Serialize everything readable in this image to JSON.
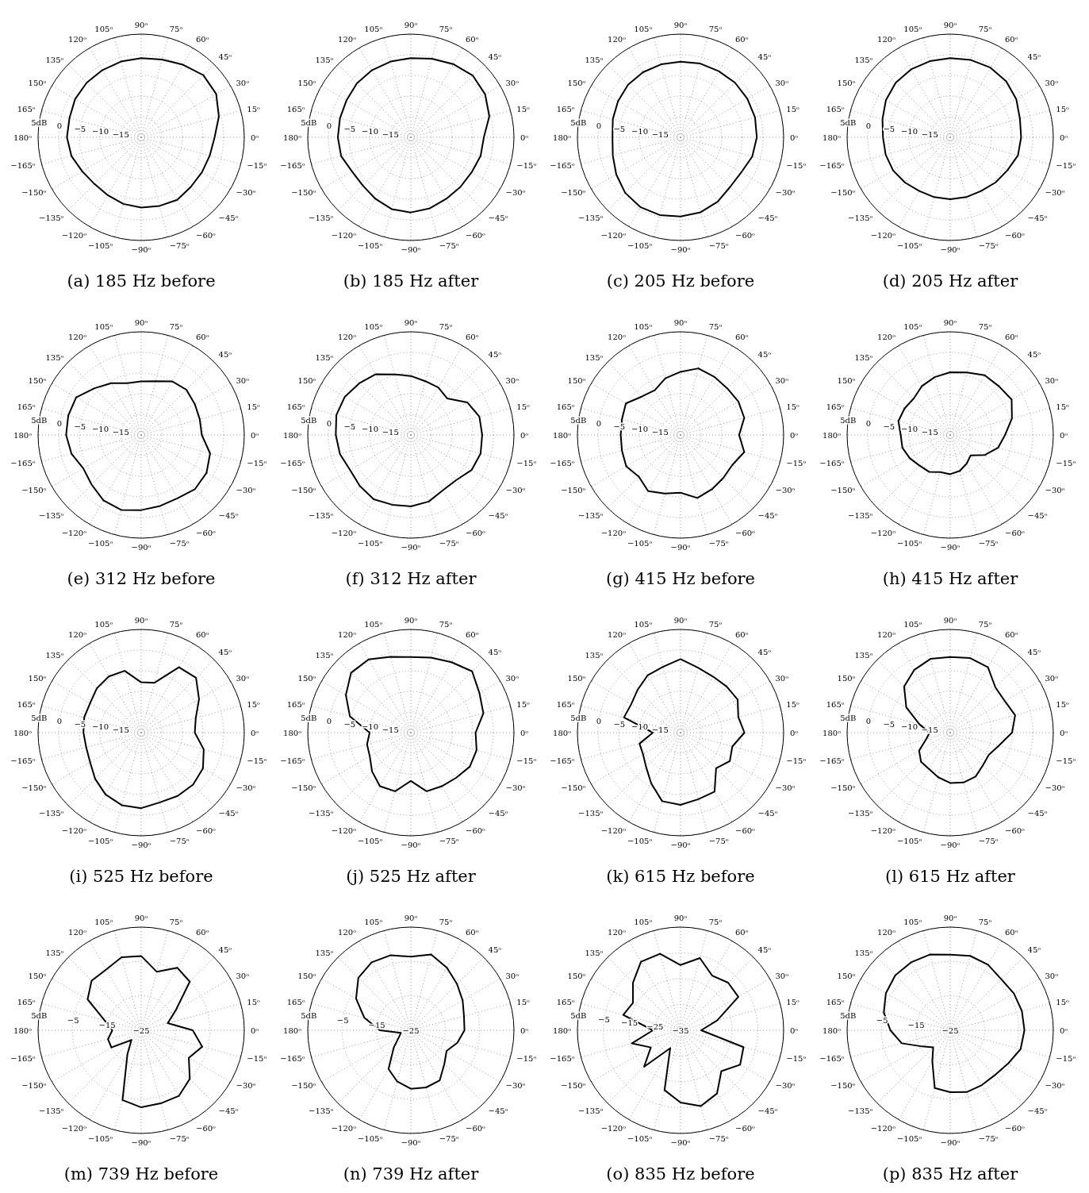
{
  "chart_data": [
    {
      "type": "radar",
      "title": "(a) 185 Hz before",
      "categories": [
        "90ᵒ",
        "75ᵒ",
        "60ᵒ",
        "45ᵒ",
        "30ᵒ",
        "15ᵒ",
        "0ᵒ",
        "−15ᵒ",
        "−30ᵒ",
        "−45ᵒ",
        "−60ᵒ",
        "−75ᵒ",
        "−90ᵒ",
        "−105ᵒ",
        "−120ᵒ",
        "−135ᵒ",
        "−150ᵒ",
        "−165ᵒ",
        "180ᵒ",
        "165ᵒ",
        "150ᵒ",
        "135ᵒ",
        "120ᵒ",
        "105ᵒ"
      ],
      "ylim": [
        -20,
        5
      ],
      "yticks": [
        {
          "value": -15,
          "label": "−15"
        },
        {
          "value": -10,
          "label": "−10"
        },
        {
          "value": -5,
          "label": "−5"
        },
        {
          "value": 0,
          "label": "0"
        },
        {
          "value": 5,
          "label": "5dB"
        }
      ],
      "grid": true,
      "series": [
        {
          "color": "#000000",
          "values": [
            -0.8,
            -0.5,
            0.3,
            1.3,
            1.0,
            -0.5,
            -2.2,
            -2.8,
            -3,
            -3,
            -2.5,
            -2.8,
            -3,
            -3.3,
            -3.8,
            -4,
            -3.5,
            -2.5,
            -2,
            -2,
            -1.5,
            -1.3,
            -1.2,
            -1
          ]
        }
      ]
    },
    {
      "type": "radar",
      "title": "(b) 185 Hz after",
      "categories": [
        "90ᵒ",
        "75ᵒ",
        "60ᵒ",
        "45ᵒ",
        "30ᵒ",
        "15ᵒ",
        "0ᵒ",
        "−15ᵒ",
        "−30ᵒ",
        "−45ᵒ",
        "−60ᵒ",
        "−75ᵒ",
        "−90ᵒ",
        "−105ᵒ",
        "−120ᵒ",
        "−135ᵒ",
        "−150ᵒ",
        "−165ᵒ",
        "180ᵒ",
        "165ᵒ",
        "150ᵒ",
        "135ᵒ",
        "120ᵒ",
        "105ᵒ"
      ],
      "ylim": [
        -20,
        5
      ],
      "yticks": [
        {
          "value": -15,
          "label": "−15"
        },
        {
          "value": -10,
          "label": "−10"
        },
        {
          "value": -5,
          "label": "−5"
        },
        {
          "value": 0,
          "label": "0"
        },
        {
          "value": 5,
          "label": "5dB"
        }
      ],
      "grid": true,
      "series": [
        {
          "color": "#000000",
          "values": [
            -0.8,
            -0.3,
            0.5,
            1.2,
            0.8,
            -0.3,
            -2.3,
            -2.5,
            -3,
            -3,
            -2.8,
            -2.2,
            -1.8,
            -2,
            -2.8,
            -3.5,
            -3.5,
            -2.5,
            -2.3,
            -2.2,
            -2,
            -1.5,
            -1.2,
            -1
          ]
        }
      ]
    },
    {
      "type": "radar",
      "title": "(c) 205 Hz before",
      "categories": [
        "90ᵒ",
        "75ᵒ",
        "60ᵒ",
        "45ᵒ",
        "30ᵒ",
        "15ᵒ",
        "0ᵒ",
        "−15ᵒ",
        "−30ᵒ",
        "−45ᵒ",
        "−60ᵒ",
        "−75ᵒ",
        "−90ᵒ",
        "−105ᵒ",
        "−120ᵒ",
        "−135ᵒ",
        "−150ᵒ",
        "−165ᵒ",
        "180ᵒ",
        "165ᵒ",
        "150ᵒ",
        "135ᵒ",
        "120ᵒ",
        "105ᵒ"
      ],
      "ylim": [
        -20,
        5
      ],
      "yticks": [
        {
          "value": -15,
          "label": "−15"
        },
        {
          "value": -10,
          "label": "−10"
        },
        {
          "value": -5,
          "label": "−5"
        },
        {
          "value": 0,
          "label": "0"
        },
        {
          "value": 5,
          "label": "5dB"
        }
      ],
      "grid": true,
      "series": [
        {
          "color": "#000000",
          "values": [
            -1.7,
            -1.5,
            -1.5,
            -1.3,
            -1.3,
            -1.3,
            -1.5,
            -2,
            -3,
            -3,
            -2,
            -1.2,
            -0.8,
            -0.5,
            -0.5,
            -1,
            -2,
            -3,
            -3.5,
            -3,
            -2.5,
            -2,
            -1.8,
            -1.7
          ]
        }
      ]
    },
    {
      "type": "radar",
      "title": "(d) 205 Hz after",
      "categories": [
        "90ᵒ",
        "75ᵒ",
        "60ᵒ",
        "45ᵒ",
        "30ᵒ",
        "15ᵒ",
        "0ᵒ",
        "−15ᵒ",
        "−30ᵒ",
        "−45ᵒ",
        "−60ᵒ",
        "−75ᵒ",
        "−90ᵒ",
        "−105ᵒ",
        "−120ᵒ",
        "−135ᵒ",
        "−150ᵒ",
        "−165ᵒ",
        "180ᵒ",
        "165ᵒ",
        "150ᵒ",
        "135ᵒ",
        "120ᵒ",
        "105ᵒ"
      ],
      "ylim": [
        -20,
        5
      ],
      "yticks": [
        {
          "value": -15,
          "label": "−15"
        },
        {
          "value": -10,
          "label": "−10"
        },
        {
          "value": -5,
          "label": "−5"
        },
        {
          "value": 0,
          "label": "0"
        },
        {
          "value": 5,
          "label": "5dB"
        }
      ],
      "grid": true,
      "series": [
        {
          "color": "#000000",
          "values": [
            -0.8,
            -0.6,
            -0.5,
            -0.8,
            -1.5,
            -2.5,
            -2.8,
            -3,
            -4,
            -4.5,
            -5,
            -5,
            -5,
            -5,
            -5,
            -4.5,
            -4,
            -3.8,
            -3.7,
            -3,
            -2,
            -1.3,
            -1,
            -0.9
          ]
        }
      ]
    },
    {
      "type": "radar",
      "title": "(e) 312 Hz before",
      "categories": [
        "90ᵒ",
        "75ᵒ",
        "60ᵒ",
        "45ᵒ",
        "30ᵒ",
        "15ᵒ",
        "0ᵒ",
        "−15ᵒ",
        "−30ᵒ",
        "−45ᵒ",
        "−60ᵒ",
        "−75ᵒ",
        "−90ᵒ",
        "−105ᵒ",
        "−120ᵒ",
        "−135ᵒ",
        "−150ᵒ",
        "−165ᵒ",
        "180ᵒ",
        "165ᵒ",
        "150ᵒ",
        "135ᵒ",
        "120ᵒ",
        "105ᵒ"
      ],
      "ylim": [
        -20,
        5
      ],
      "yticks": [
        {
          "value": -15,
          "label": "−15"
        },
        {
          "value": -10,
          "label": "−10"
        },
        {
          "value": -5,
          "label": "−5"
        },
        {
          "value": 0,
          "label": "0"
        },
        {
          "value": 5,
          "label": "5dB"
        }
      ],
      "grid": true,
      "series": [
        {
          "color": "#000000",
          "values": [
            -7,
            -6.5,
            -5,
            -4.5,
            -5,
            -5.3,
            -5.3,
            -2.7,
            -1.7,
            -1.5,
            -2.3,
            -2.2,
            -1.8,
            -1.2,
            -1.7,
            -3,
            -3.8,
            -2.5,
            -1.8,
            -1.7,
            -1.8,
            -4,
            -5.5,
            -7
          ]
        }
      ]
    },
    {
      "type": "radar",
      "title": "(f) 312 Hz after",
      "categories": [
        "90ᵒ",
        "75ᵒ",
        "60ᵒ",
        "45ᵒ",
        "30ᵒ",
        "15ᵒ",
        "0ᵒ",
        "−15ᵒ",
        "−30ᵒ",
        "−45ᵒ",
        "−60ᵒ",
        "−75ᵒ",
        "−90ᵒ",
        "−105ᵒ",
        "−120ᵒ",
        "−135ᵒ",
        "−150ᵒ",
        "−165ᵒ",
        "180ᵒ",
        "165ᵒ",
        "150ᵒ",
        "135ᵒ",
        "120ᵒ",
        "105ᵒ"
      ],
      "ylim": [
        -20,
        5
      ],
      "yticks": [
        {
          "value": -15,
          "label": "−15"
        },
        {
          "value": -10,
          "label": "−10"
        },
        {
          "value": -5,
          "label": "−5"
        },
        {
          "value": 0,
          "label": "0"
        },
        {
          "value": 5,
          "label": "5dB"
        }
      ],
      "grid": true,
      "series": [
        {
          "color": "#000000",
          "values": [
            -5.7,
            -6.5,
            -6.7,
            -7.5,
            -4.2,
            -2.8,
            -2.7,
            -2.5,
            -3,
            -4.5,
            -4.5,
            -3.3,
            -2.7,
            -2.5,
            -2,
            -2.5,
            -3,
            -2.2,
            -1.8,
            -1.3,
            -1.5,
            -2.3,
            -3,
            -4.8
          ]
        }
      ]
    },
    {
      "type": "radar",
      "title": "(g) 415 Hz before",
      "categories": [
        "90ᵒ",
        "75ᵒ",
        "60ᵒ",
        "45ᵒ",
        "30ᵒ",
        "15ᵒ",
        "0ᵒ",
        "−15ᵒ",
        "−30ᵒ",
        "−45ᵒ",
        "−60ᵒ",
        "−75ᵒ",
        "−90ᵒ",
        "−105ᵒ",
        "−120ᵒ",
        "−135ᵒ",
        "−150ᵒ",
        "−165ᵒ",
        "180ᵒ",
        "165ᵒ",
        "150ᵒ",
        "135ᵒ",
        "120ᵒ",
        "105ᵒ"
      ],
      "ylim": [
        -20,
        5
      ],
      "yticks": [
        {
          "value": -15,
          "label": "−15"
        },
        {
          "value": -10,
          "label": "−10"
        },
        {
          "value": -5,
          "label": "−5"
        },
        {
          "value": 0,
          "label": "0"
        },
        {
          "value": 5,
          "label": "5dB"
        }
      ],
      "grid": true,
      "series": [
        {
          "color": "#000000",
          "values": [
            -4.7,
            -3.3,
            -3.7,
            -4,
            -3.8,
            -4,
            -5.8,
            -4,
            -5.5,
            -5.3,
            -4.8,
            -4.2,
            -6,
            -5.3,
            -4.3,
            -5.7,
            -4.8,
            -5.3,
            -5.5,
            -5.3,
            -4.7,
            -6.8,
            -7.5,
            -5.8
          ]
        }
      ]
    },
    {
      "type": "radar",
      "title": "(h) 415 Hz after",
      "categories": [
        "90ᵒ",
        "75ᵒ",
        "60ᵒ",
        "45ᵒ",
        "30ᵒ",
        "15ᵒ",
        "0ᵒ",
        "−15ᵒ",
        "−30ᵒ",
        "−45ᵒ",
        "−60ᵒ",
        "−75ᵒ",
        "−90ᵒ",
        "−105ᵒ",
        "−120ᵒ",
        "−135ᵒ",
        "−150ᵒ",
        "−165ᵒ",
        "180ᵒ",
        "165ᵒ",
        "150ᵒ",
        "135ᵒ",
        "120ᵒ",
        "105ᵒ"
      ],
      "ylim": [
        -20,
        5
      ],
      "yticks": [
        {
          "value": -15,
          "label": "−15"
        },
        {
          "value": -10,
          "label": "−10"
        },
        {
          "value": -5,
          "label": "−5"
        },
        {
          "value": 0,
          "label": "0"
        },
        {
          "value": 5,
          "label": "5dB"
        }
      ],
      "grid": true,
      "series": [
        {
          "color": "#000000",
          "values": [
            -4.8,
            -4.3,
            -3.3,
            -3.3,
            -2.8,
            -4.5,
            -6.7,
            -8,
            -10.3,
            -13,
            -12,
            -11,
            -10.5,
            -10.7,
            -9.7,
            -9.5,
            -8.7,
            -8,
            -8,
            -7,
            -7.2,
            -7.5,
            -6.3,
            -5.5
          ]
        }
      ]
    },
    {
      "type": "radar",
      "title": "(i) 525 Hz before",
      "categories": [
        "90ᵒ",
        "75ᵒ",
        "60ᵒ",
        "45ᵒ",
        "30ᵒ",
        "15ᵒ",
        "0ᵒ",
        "−15ᵒ",
        "−30ᵒ",
        "−45ᵒ",
        "−60ᵒ",
        "−75ᵒ",
        "−90ᵒ",
        "−105ᵒ",
        "−120ᵒ",
        "−135ᵒ",
        "−150ᵒ",
        "−165ᵒ",
        "180ᵒ",
        "165ᵒ",
        "150ᵒ",
        "135ᵒ",
        "120ᵒ",
        "105ᵒ"
      ],
      "ylim": [
        -20,
        5
      ],
      "yticks": [
        {
          "value": -15,
          "label": "−15"
        },
        {
          "value": -10,
          "label": "−10"
        },
        {
          "value": -5,
          "label": "−5"
        },
        {
          "value": 0,
          "label": "0"
        },
        {
          "value": 5,
          "label": "5dB"
        }
      ],
      "grid": true,
      "series": [
        {
          "color": "#000000",
          "values": [
            -7.8,
            -7.5,
            -1.7,
            -1.2,
            -3.8,
            -6.3,
            -7,
            -4.3,
            -2.7,
            -2.2,
            -2.3,
            -2.5,
            -1.7,
            -1.8,
            -2.7,
            -4.2,
            -5.7,
            -6.2,
            -6,
            -5.7,
            -5.7,
            -4.8,
            -4.3,
            -4.5
          ]
        }
      ]
    },
    {
      "type": "radar",
      "title": "(j) 525 Hz after",
      "categories": [
        "90ᵒ",
        "75ᵒ",
        "60ᵒ",
        "45ᵒ",
        "30ᵒ",
        "15ᵒ",
        "0ᵒ",
        "−15ᵒ",
        "−30ᵒ",
        "−45ᵒ",
        "−60ᵒ",
        "−75ᵒ",
        "−90ᵒ",
        "−105ᵒ",
        "−120ᵒ",
        "−135ᵒ",
        "−150ᵒ",
        "−165ᵒ",
        "180ᵒ",
        "165ᵒ",
        "150ᵒ",
        "135ᵒ",
        "120ᵒ",
        "105ᵒ"
      ],
      "ylim": [
        -20,
        5
      ],
      "yticks": [
        {
          "value": -15,
          "label": "−15"
        },
        {
          "value": -10,
          "label": "−10"
        },
        {
          "value": -5,
          "label": "−5"
        },
        {
          "value": 0,
          "label": "0"
        },
        {
          "value": 5,
          "label": "5dB"
        }
      ],
      "grid": true,
      "series": [
        {
          "color": "#000000",
          "values": [
            -1.7,
            -1.2,
            -0.3,
            1,
            -0.8,
            -1.8,
            -4.3,
            -3.5,
            -3.5,
            -4.5,
            -5,
            -5.3,
            -8.3,
            -5.3,
            -5,
            -6.7,
            -8.5,
            -9,
            -10,
            -4.7,
            -1.8,
            0.5,
            0.5,
            -1
          ]
        }
      ]
    },
    {
      "type": "radar",
      "title": "(k) 615 Hz before",
      "categories": [
        "90ᵒ",
        "75ᵒ",
        "60ᵒ",
        "45ᵒ",
        "30ᵒ",
        "15ᵒ",
        "0ᵒ",
        "−15ᵒ",
        "−30ᵒ",
        "−45ᵒ",
        "−60ᵒ",
        "−75ᵒ",
        "−90ᵒ",
        "−105ᵒ",
        "−120ᵒ",
        "−135ᵒ",
        "−150ᵒ",
        "−165ᵒ",
        "180ᵒ",
        "165ᵒ",
        "150ᵒ",
        "135ᵒ",
        "120ᵒ",
        "105ᵒ"
      ],
      "ylim": [
        -20,
        5
      ],
      "yticks": [
        {
          "value": -15,
          "label": "−15"
        },
        {
          "value": -10,
          "label": "−10"
        },
        {
          "value": -5,
          "label": "−5"
        },
        {
          "value": 0,
          "label": "0"
        },
        {
          "value": 5,
          "label": "5dB"
        }
      ],
      "grid": true,
      "series": [
        {
          "color": "#000000",
          "values": [
            -2.2,
            -3.7,
            -4.3,
            -4.2,
            -4,
            -5.5,
            -4.5,
            -7,
            -6.2,
            -7.8,
            -3.5,
            -3.3,
            -2.5,
            -2.8,
            -5.8,
            -8.2,
            -9.5,
            -9.7,
            -13.3,
            -5.8,
            -6.2,
            -5.3,
            -4,
            -3.5
          ]
        }
      ]
    },
    {
      "type": "radar",
      "title": "(l) 615 Hz after",
      "categories": [
        "90ᵒ",
        "75ᵒ",
        "60ᵒ",
        "45ᵒ",
        "30ᵒ",
        "15ᵒ",
        "0ᵒ",
        "−15ᵒ",
        "−30ᵒ",
        "−45ᵒ",
        "−60ᵒ",
        "−75ᵒ",
        "−90ᵒ",
        "−105ᵒ",
        "−120ᵒ",
        "−135ᵒ",
        "−150ᵒ",
        "−165ᵒ",
        "180ᵒ",
        "165ᵒ",
        "150ᵒ",
        "135ᵒ",
        "120ᵒ",
        "105ᵒ"
      ],
      "ylim": [
        -20,
        5
      ],
      "yticks": [
        {
          "value": -15,
          "label": "−15"
        },
        {
          "value": -10,
          "label": "−10"
        },
        {
          "value": -5,
          "label": "−5"
        },
        {
          "value": 0,
          "label": "0"
        },
        {
          "value": 5,
          "label": "5dB"
        }
      ],
      "grid": true,
      "series": [
        {
          "color": "#000000",
          "values": [
            -1.7,
            -1.3,
            -1.7,
            -4.5,
            -4.7,
            -3.7,
            -5,
            -7.8,
            -9.2,
            -8.8,
            -7.7,
            -7.5,
            -7.8,
            -8.8,
            -9.8,
            -10,
            -11.3,
            -14,
            -15,
            -12.3,
            -7.7,
            -4.2,
            -2.5,
            -1.5
          ]
        }
      ]
    },
    {
      "type": "radar",
      "title": "(m) 739 Hz before",
      "categories": [
        "90ᵒ",
        "75ᵒ",
        "60ᵒ",
        "45ᵒ",
        "30ᵒ",
        "15ᵒ",
        "0ᵒ",
        "−15ᵒ",
        "−30ᵒ",
        "−45ᵒ",
        "−60ᵒ",
        "−75ᵒ",
        "−90ᵒ",
        "−105ᵒ",
        "−120ᵒ",
        "−135ᵒ",
        "−150ᵒ",
        "−165ᵒ",
        "180ᵒ",
        "165ᵒ",
        "150ᵒ",
        "135ᵒ",
        "120ᵒ",
        "105ᵒ"
      ],
      "ylim": [
        -25,
        5
      ],
      "yticks": [
        {
          "value": -25,
          "label": "−25"
        },
        {
          "value": -15,
          "label": "−15"
        },
        {
          "value": -5,
          "label": "−5"
        },
        {
          "value": 5,
          "label": "5dB"
        }
      ],
      "grid": true,
      "series": [
        {
          "color": "#000000",
          "values": [
            -3.4,
            -7.4,
            -4,
            -5,
            -13.4,
            -17,
            -10,
            -6.6,
            -9,
            -5,
            -3,
            -3,
            -2.6,
            -4,
            -17,
            -21,
            -15,
            -15,
            -16.6,
            -14,
            -7,
            -4.6,
            -4.6,
            -3
          ]
        }
      ]
    },
    {
      "type": "radar",
      "title": "(n) 739 Hz after",
      "categories": [
        "90ᵒ",
        "75ᵒ",
        "60ᵒ",
        "45ᵒ",
        "30ᵒ",
        "15ᵒ",
        "0ᵒ",
        "−15ᵒ",
        "−30ᵒ",
        "−45ᵒ",
        "−60ᵒ",
        "−75ᵒ",
        "−90ᵒ",
        "−105ᵒ",
        "−120ᵒ",
        "−135ᵒ",
        "−150ᵒ",
        "−165ᵒ",
        "180ᵒ",
        "165ᵒ",
        "150ᵒ",
        "135ᵒ",
        "120ᵒ",
        "105ᵒ"
      ],
      "ylim": [
        -25,
        5
      ],
      "yticks": [
        {
          "value": -25,
          "label": "−25"
        },
        {
          "value": -15,
          "label": "−15"
        },
        {
          "value": -5,
          "label": "−5"
        },
        {
          "value": 5,
          "label": "5dB"
        }
      ],
      "grid": true,
      "series": [
        {
          "color": "#000000",
          "values": [
            -3.6,
            -2.2,
            -4,
            -6,
            -7.6,
            -9,
            -9.4,
            -11,
            -13,
            -11.2,
            -8.2,
            -7.8,
            -8,
            -9.6,
            -12,
            -18,
            -21,
            -22,
            -16,
            -11,
            -6.6,
            -3.4,
            -2.2,
            -2.4
          ]
        }
      ]
    },
    {
      "type": "radar",
      "title": "(o) 835 Hz before",
      "categories": [
        "90ᵒ",
        "75ᵒ",
        "60ᵒ",
        "45ᵒ",
        "30ᵒ",
        "15ᵒ",
        "0ᵒ",
        "−15ᵒ",
        "−30ᵒ",
        "−45ᵒ",
        "−60ᵒ",
        "−75ᵒ",
        "−90ᵒ",
        "−105ᵒ",
        "−120ᵒ",
        "−135ᵒ",
        "−150ᵒ",
        "−165ᵒ",
        "180ᵒ",
        "165ᵒ",
        "150ᵒ",
        "135ᵒ",
        "120ᵒ",
        "105ᵒ"
      ],
      "ylim": [
        -35,
        5
      ],
      "yticks": [
        {
          "value": -35,
          "label": "−35"
        },
        {
          "value": -25,
          "label": "−25"
        },
        {
          "value": -15,
          "label": "−15"
        },
        {
          "value": -5,
          "label": "−5"
        },
        {
          "value": 5,
          "label": "5dB"
        }
      ],
      "grid": true,
      "series": [
        {
          "color": "#000000",
          "values": [
            -9.7,
            -6,
            -10.5,
            -8.9,
            -9.1,
            -20.3,
            -27,
            -9.7,
            -8.3,
            -12.6,
            -6.7,
            -4.6,
            -7,
            -11,
            -27,
            -15,
            -21.7,
            -15.5,
            -24.3,
            -12,
            -13.7,
            -8.9,
            -4.3,
            -4.3
          ]
        }
      ]
    },
    {
      "type": "radar",
      "title": "(p) 835 Hz after",
      "categories": [
        "90ᵒ",
        "75ᵒ",
        "60ᵒ",
        "45ᵒ",
        "30ᵒ",
        "15ᵒ",
        "0ᵒ",
        "−15ᵒ",
        "−30ᵒ",
        "−45ᵒ",
        "−60ᵒ",
        "−75ᵒ",
        "−90ᵒ",
        "−105ᵒ",
        "−120ᵒ",
        "−135ᵒ",
        "−150ᵒ",
        "−165ᵒ",
        "180ᵒ",
        "165ᵒ",
        "150ᵒ",
        "135ᵒ",
        "120ᵒ",
        "105ᵒ"
      ],
      "ylim": [
        -25,
        5
      ],
      "yticks": [
        {
          "value": -25,
          "label": "−25"
        },
        {
          "value": -15,
          "label": "−15"
        },
        {
          "value": -5,
          "label": "−5"
        },
        {
          "value": 5,
          "label": "5dB"
        }
      ],
      "grid": true,
      "series": [
        {
          "color": "#000000",
          "values": [
            -3,
            -2.6,
            -3,
            -4,
            -3.6,
            -3.4,
            -3.4,
            -3.8,
            -5.6,
            -6.6,
            -6.6,
            -6.4,
            -7,
            -7.6,
            -14.6,
            -18,
            -15.6,
            -10.4,
            -7.6,
            -5,
            -3.4,
            -2.4,
            -2.2,
            -2.2
          ]
        }
      ]
    }
  ]
}
